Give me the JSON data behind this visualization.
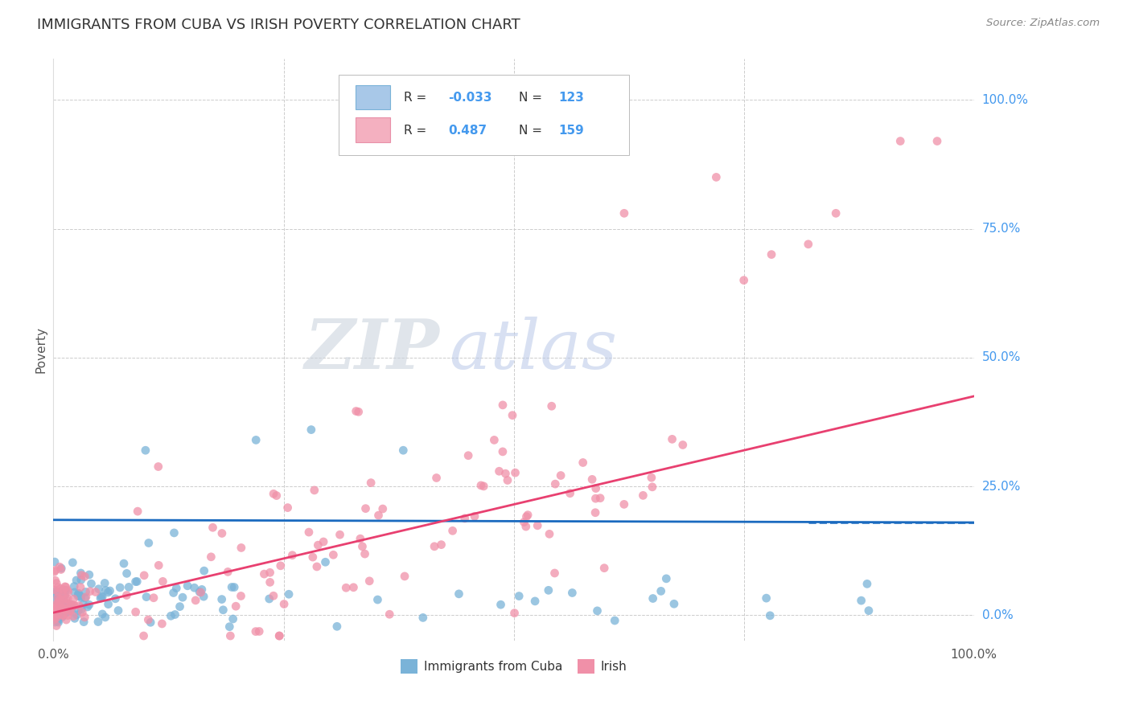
{
  "title": "IMMIGRANTS FROM CUBA VS IRISH POVERTY CORRELATION CHART",
  "source": "Source: ZipAtlas.com",
  "ylabel": "Poverty",
  "xlim": [
    0.0,
    1.0
  ],
  "ylim": [
    -0.05,
    1.08
  ],
  "ytick_labels": [
    "0.0%",
    "25.0%",
    "50.0%",
    "75.0%",
    "100.0%"
  ],
  "ytick_values": [
    0.0,
    0.25,
    0.5,
    0.75,
    1.0
  ],
  "xtick_grid": [
    0.25,
    0.5,
    0.75
  ],
  "blue_dot_color": "#7ab3d8",
  "pink_dot_color": "#f090a8",
  "blue_line_color": "#1a6abf",
  "pink_line_color": "#e84070",
  "blue_legend_fill": "#a8c8e8",
  "blue_legend_edge": "#7ab3d8",
  "pink_legend_fill": "#f4b0c0",
  "pink_legend_edge": "#e890a8",
  "blue_R": -0.033,
  "blue_N": 123,
  "pink_R": 0.487,
  "pink_N": 159,
  "blue_line_y_start": 0.185,
  "blue_line_y_end": 0.18,
  "pink_line_y_start": 0.005,
  "pink_line_y_end": 0.425,
  "watermark_zip": "ZIP",
  "watermark_atlas": "atlas",
  "watermark_color_zip": "#d0d8e4",
  "watermark_color_atlas": "#c0cce8",
  "background_color": "#ffffff",
  "grid_color": "#cccccc",
  "title_fontsize": 13,
  "legend_label_blue": "Immigrants from Cuba",
  "legend_label_pink": "Irish",
  "right_label_color": "#4499ee",
  "dot_size": 60,
  "dot_alpha": 0.75
}
